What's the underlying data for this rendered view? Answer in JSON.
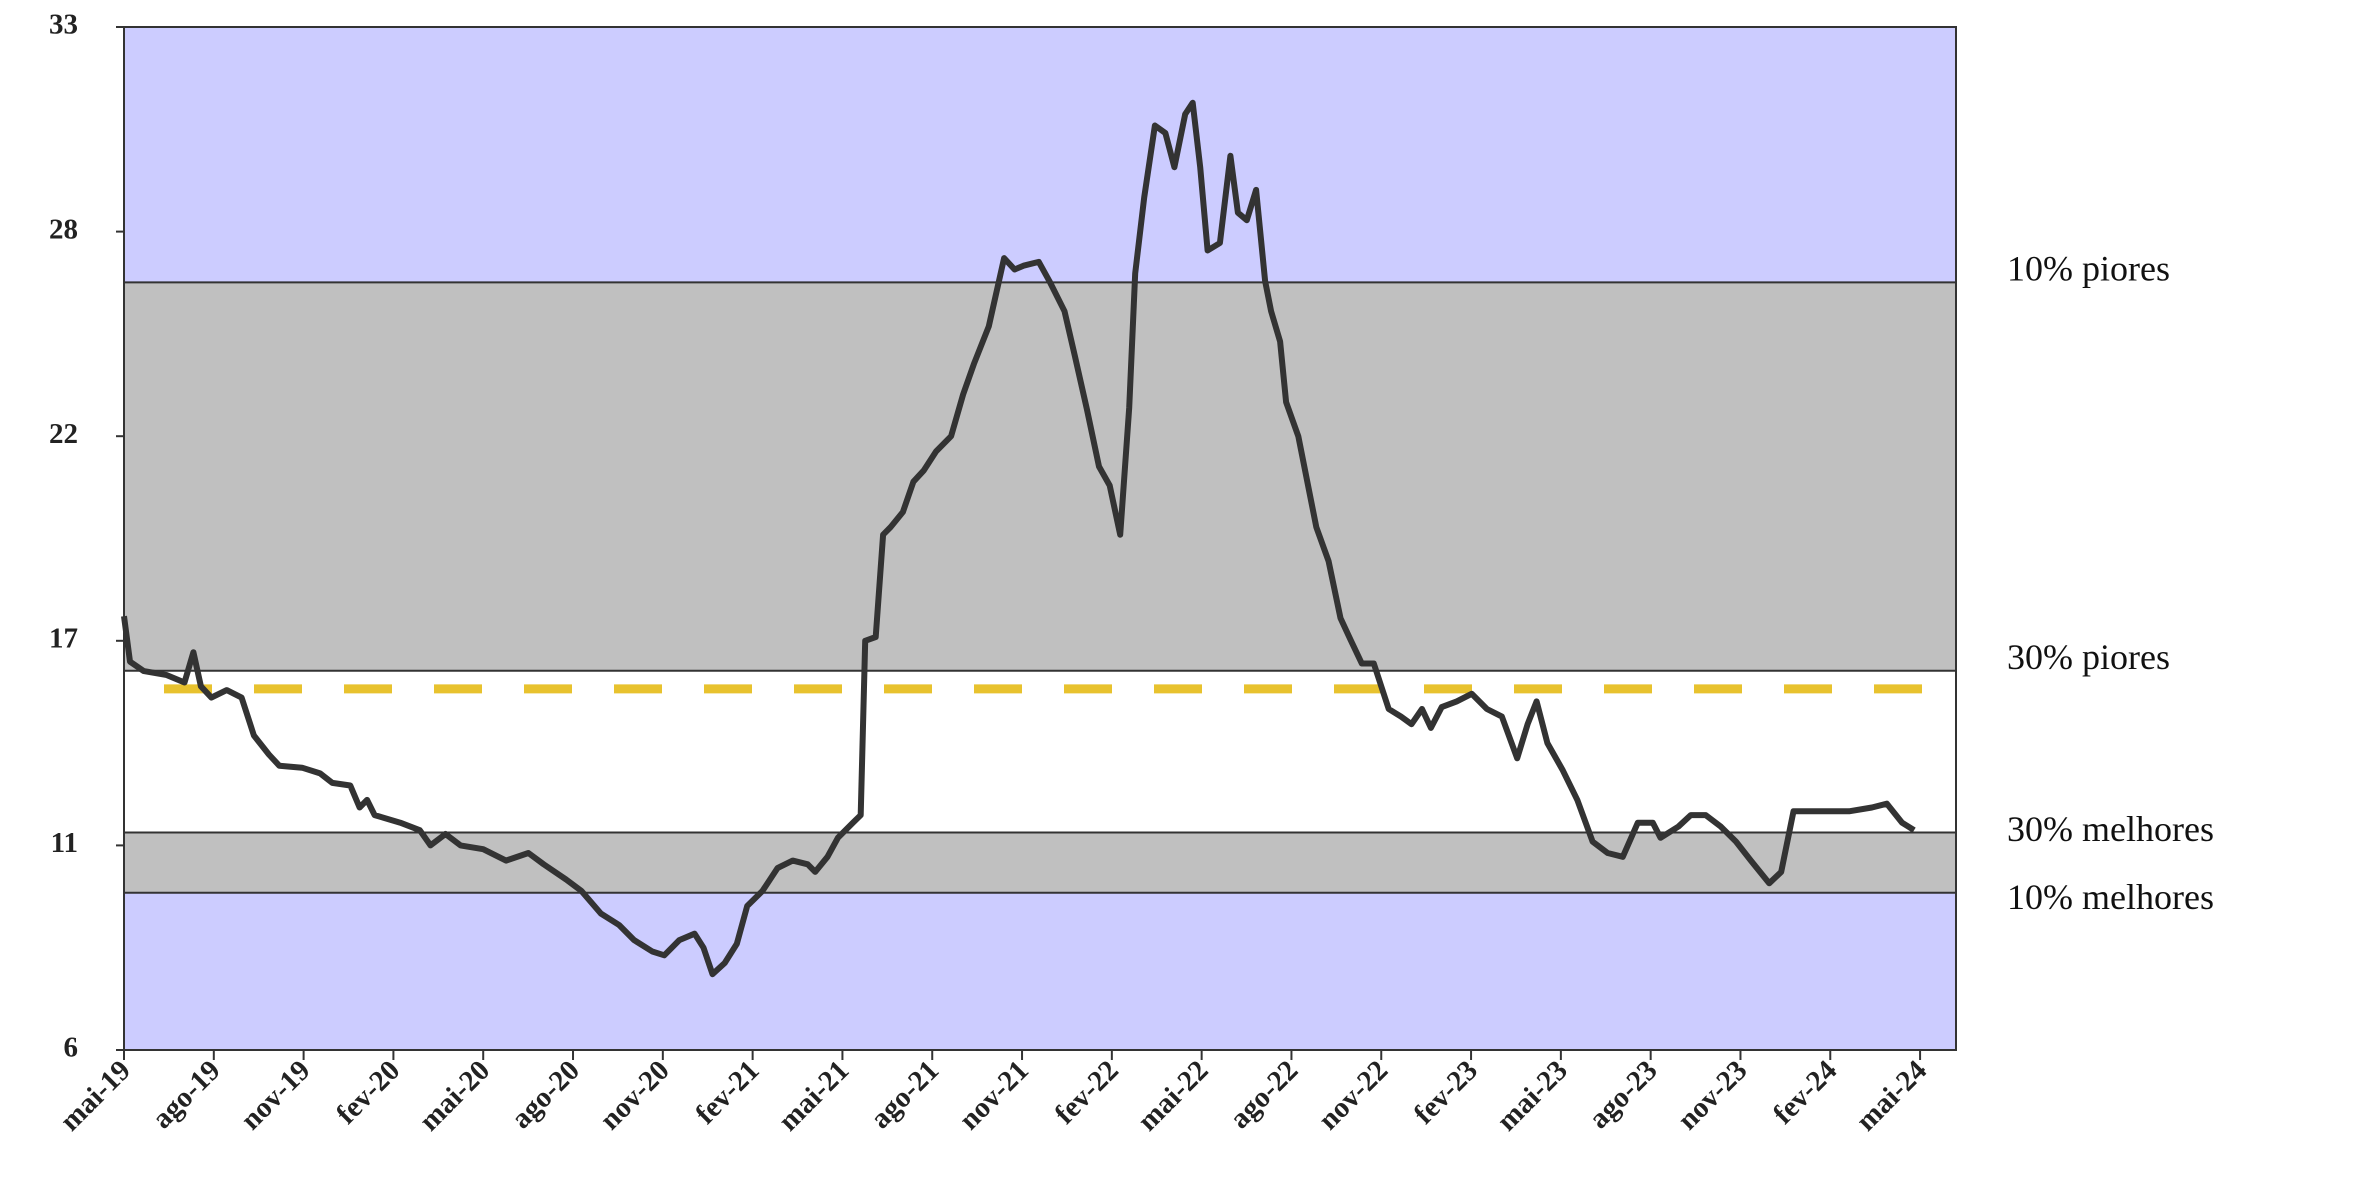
{
  "chart_data": {
    "type": "line",
    "xlim": [
      0,
      61.2
    ],
    "xticks": [
      {
        "value": 0,
        "label": "mai-19"
      },
      {
        "value": 3,
        "label": "ago-19"
      },
      {
        "value": 6,
        "label": "nov-19"
      },
      {
        "value": 9,
        "label": "fev-20"
      },
      {
        "value": 12,
        "label": "mai-20"
      },
      {
        "value": 15,
        "label": "ago-20"
      },
      {
        "value": 18,
        "label": "nov-20"
      },
      {
        "value": 21,
        "label": "fev-21"
      },
      {
        "value": 24,
        "label": "mai-21"
      },
      {
        "value": 27,
        "label": "ago-21"
      },
      {
        "value": 30,
        "label": "nov-21"
      },
      {
        "value": 33,
        "label": "fev-22"
      },
      {
        "value": 36,
        "label": "mai-22"
      },
      {
        "value": 39,
        "label": "ago-22"
      },
      {
        "value": 42,
        "label": "nov-22"
      },
      {
        "value": 45,
        "label": "fev-23"
      },
      {
        "value": 48,
        "label": "mai-23"
      },
      {
        "value": 51,
        "label": "ago-23"
      },
      {
        "value": 54,
        "label": "nov-23"
      },
      {
        "value": 57,
        "label": "fev-24"
      },
      {
        "value": 60,
        "label": "mai-24"
      }
    ],
    "ylim": [
      6,
      33
    ],
    "yticks": [
      6,
      {
        "value": 11.4,
        "label": "11"
      },
      {
        "value": 16.8,
        "label": "17"
      },
      {
        "value": 22.2,
        "label": "22"
      },
      {
        "value": 27.6,
        "label": "28"
      },
      33
    ],
    "reference_lines": [
      {
        "label": "10% piores",
        "value": 26.26
      },
      {
        "label": "30% piores",
        "value": 16.01
      },
      {
        "label": "30% melhores",
        "value": 11.74
      },
      {
        "label": "10% melhores",
        "value": 10.15
      }
    ],
    "reference_line_color": "#333333",
    "zone_colors": [
      "#ccccff",
      "#c0c0c0",
      "#ffffff",
      "#c0c0c0",
      "#ccccff"
    ],
    "dashed_line": {
      "value": 15.53,
      "color": "#e8c22e"
    },
    "series": [
      {
        "color": "#333333",
        "x": [
          0,
          0.2,
          0.66,
          1.41,
          2.02,
          2.32,
          2.57,
          2.92,
          3.43,
          3.93,
          4.34,
          4.84,
          5.19,
          5.95,
          6.55,
          6.96,
          7.56,
          7.87,
          8.12,
          8.37,
          9.23,
          9.88,
          10.24,
          10.74,
          11.24,
          12.0,
          12.76,
          13.51,
          14.02,
          14.77,
          15.28,
          15.93,
          16.54,
          17.04,
          17.65,
          18.05,
          18.55,
          19.06,
          19.36,
          19.66,
          20.07,
          20.47,
          20.82,
          21.33,
          21.83,
          22.34,
          22.84,
          23.09,
          23.5,
          23.85,
          24.35,
          24.61,
          24.76,
          25.11,
          25.36,
          25.61,
          26.02,
          26.37,
          26.72,
          27.13,
          27.63,
          28.03,
          28.39,
          28.89,
          29.4,
          29.75,
          30.05,
          30.56,
          30.91,
          31.42,
          31.77,
          32.17,
          32.57,
          32.93,
          33.28,
          33.58,
          33.78,
          34.08,
          34.44,
          34.79,
          35.09,
          35.45,
          35.7,
          35.95,
          36.2,
          36.61,
          36.96,
          37.21,
          37.51,
          37.82,
          38.12,
          38.32,
          38.62,
          38.82,
          39.23,
          39.53,
          39.83,
          40.24,
          40.64,
          40.99,
          41.35,
          41.75,
          42.25,
          42.66,
          43.01,
          43.36,
          43.66,
          44.02,
          44.52,
          45.02,
          45.53,
          46.03,
          46.54,
          46.89,
          47.19,
          47.55,
          48.05,
          48.55,
          49.06,
          49.56,
          50.07,
          50.57,
          51.07,
          51.33,
          51.93,
          52.34,
          52.84,
          53.34,
          53.85,
          54.35,
          54.96,
          55.36,
          55.77,
          56.37,
          57.13,
          57.63,
          58.39,
          58.89,
          59.4,
          59.8
        ],
        "values": [
          17.45,
          16.25,
          16.0,
          15.9,
          15.7,
          16.5,
          15.6,
          15.3,
          15.5,
          15.3,
          14.3,
          13.8,
          13.5,
          13.45,
          13.3,
          13.05,
          12.98,
          12.4,
          12.6,
          12.2,
          12.0,
          11.8,
          11.4,
          11.7,
          11.4,
          11.3,
          11.0,
          11.2,
          10.9,
          10.5,
          10.2,
          9.6,
          9.3,
          8.9,
          8.6,
          8.5,
          8.9,
          9.07,
          8.7,
          8.0,
          8.3,
          8.8,
          9.8,
          10.2,
          10.8,
          11.0,
          10.9,
          10.7,
          11.1,
          11.6,
          12.0,
          12.2,
          16.8,
          16.9,
          19.6,
          19.8,
          20.2,
          21.0,
          21.3,
          21.8,
          22.2,
          23.3,
          24.1,
          25.1,
          26.9,
          26.6,
          26.7,
          26.8,
          26.3,
          25.5,
          24.3,
          22.9,
          21.4,
          20.9,
          19.6,
          22.95,
          26.5,
          28.5,
          30.4,
          30.2,
          29.3,
          30.7,
          31.0,
          29.3,
          27.1,
          27.3,
          29.6,
          28.1,
          27.9,
          28.7,
          26.3,
          25.5,
          24.7,
          23.1,
          22.2,
          21.0,
          19.8,
          18.9,
          17.4,
          16.8,
          16.2,
          16.2,
          15.0,
          14.8,
          14.6,
          15.0,
          14.5,
          15.05,
          15.2,
          15.4,
          15.0,
          14.8,
          13.7,
          14.6,
          15.2,
          14.1,
          13.4,
          12.6,
          11.5,
          11.2,
          11.1,
          12.0,
          12.0,
          11.6,
          11.9,
          12.2,
          12.2,
          11.9,
          11.5,
          11.0,
          10.4,
          10.7,
          12.3,
          12.3,
          12.3,
          12.3,
          12.4,
          12.5,
          12.0,
          11.8
        ]
      }
    ]
  }
}
